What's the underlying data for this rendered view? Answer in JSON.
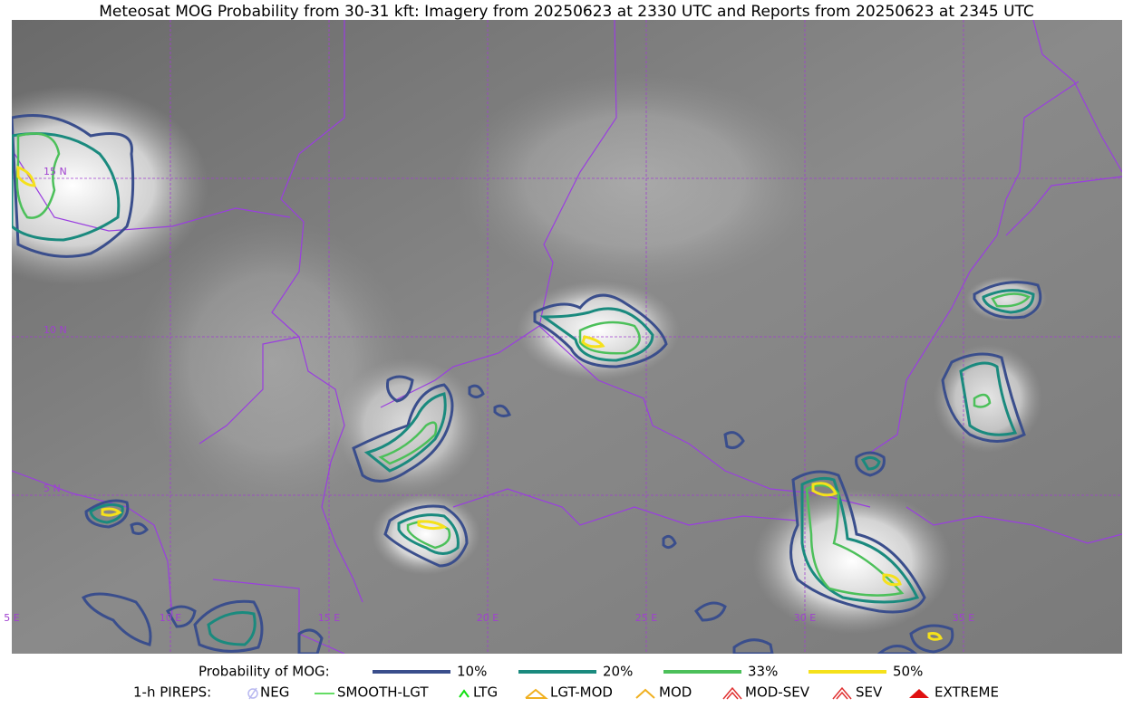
{
  "title": "Meteosat MOG Probability from 30-31 kft: Imagery from 20250623 at 2330 UTC and Reports from 20250623 at 2345 UTC",
  "map": {
    "lat_labels": [
      "15 N",
      "10 N",
      "5 N"
    ],
    "lon_labels": [
      "5 E",
      "10 E",
      "15 E",
      "20 E",
      "25 E",
      "30 E",
      "35 E"
    ]
  },
  "legend": {
    "probability": {
      "title": "Probability of MOG:",
      "items": [
        "10%",
        "20%",
        "33%",
        "50%"
      ]
    },
    "pireps": {
      "title": "1-h PIREPS:",
      "items": [
        "NEG",
        "SMOOTH-LGT",
        "LTG",
        "LGT-MOD",
        "MOD",
        "MOD-SEV",
        "SEV",
        "EXTREME"
      ]
    }
  }
}
